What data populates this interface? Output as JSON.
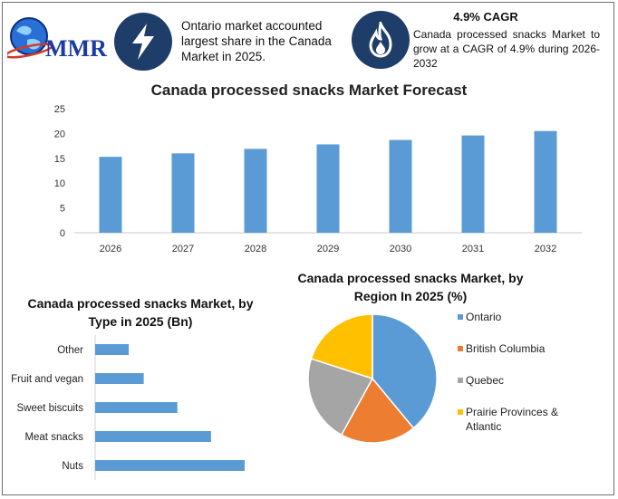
{
  "header": {
    "logo_text": "MMR",
    "fact1": "Ontario market accounted largest share in the Canada Market in 2025.",
    "cagr_title": "4.9% CAGR",
    "cagr_text": "Canada processed snacks Market to grow at a CAGR of 4.9% during 2026-2032",
    "icons": [
      "lightning-bolt-icon",
      "flame-icon",
      "globe-logo-icon"
    ],
    "colors": {
      "icon_bg": "#1f3d69",
      "logo_text": "#1a3aa6"
    }
  },
  "chart_data": [
    {
      "type": "bar",
      "title": "Canada processed snacks Market Forecast",
      "categories": [
        "2026",
        "2027",
        "2028",
        "2029",
        "2030",
        "2031",
        "2032"
      ],
      "values": [
        15.3,
        16.0,
        16.9,
        17.8,
        18.7,
        19.6,
        20.5
      ],
      "ylim": [
        0,
        25
      ],
      "yticks": [
        "0",
        "5",
        "10",
        "15",
        "20",
        "25"
      ],
      "color": "#5b9bd5",
      "grid": false
    },
    {
      "type": "bar",
      "orientation": "horizontal",
      "title": "Canada processed snacks Market, by Type in 2025 (Bn)",
      "categories": [
        "Other",
        "Fruit and vegan",
        "Sweet biscuits",
        "Meat snacks",
        "Nuts"
      ],
      "values": [
        0.9,
        1.3,
        2.2,
        3.1,
        4.0
      ],
      "color": "#5b9bd5"
    },
    {
      "type": "pie",
      "title": "Canada processed snacks Market, by Region In 2025 (%)",
      "labels": [
        "Ontario",
        "British Columbia",
        "Quebec",
        "Prairie Provinces & Atlantic"
      ],
      "values": [
        39,
        19,
        22,
        20
      ],
      "colors": [
        "#5b9bd5",
        "#ed7d31",
        "#a5a5a5",
        "#ffc000"
      ],
      "legend": "right"
    }
  ]
}
